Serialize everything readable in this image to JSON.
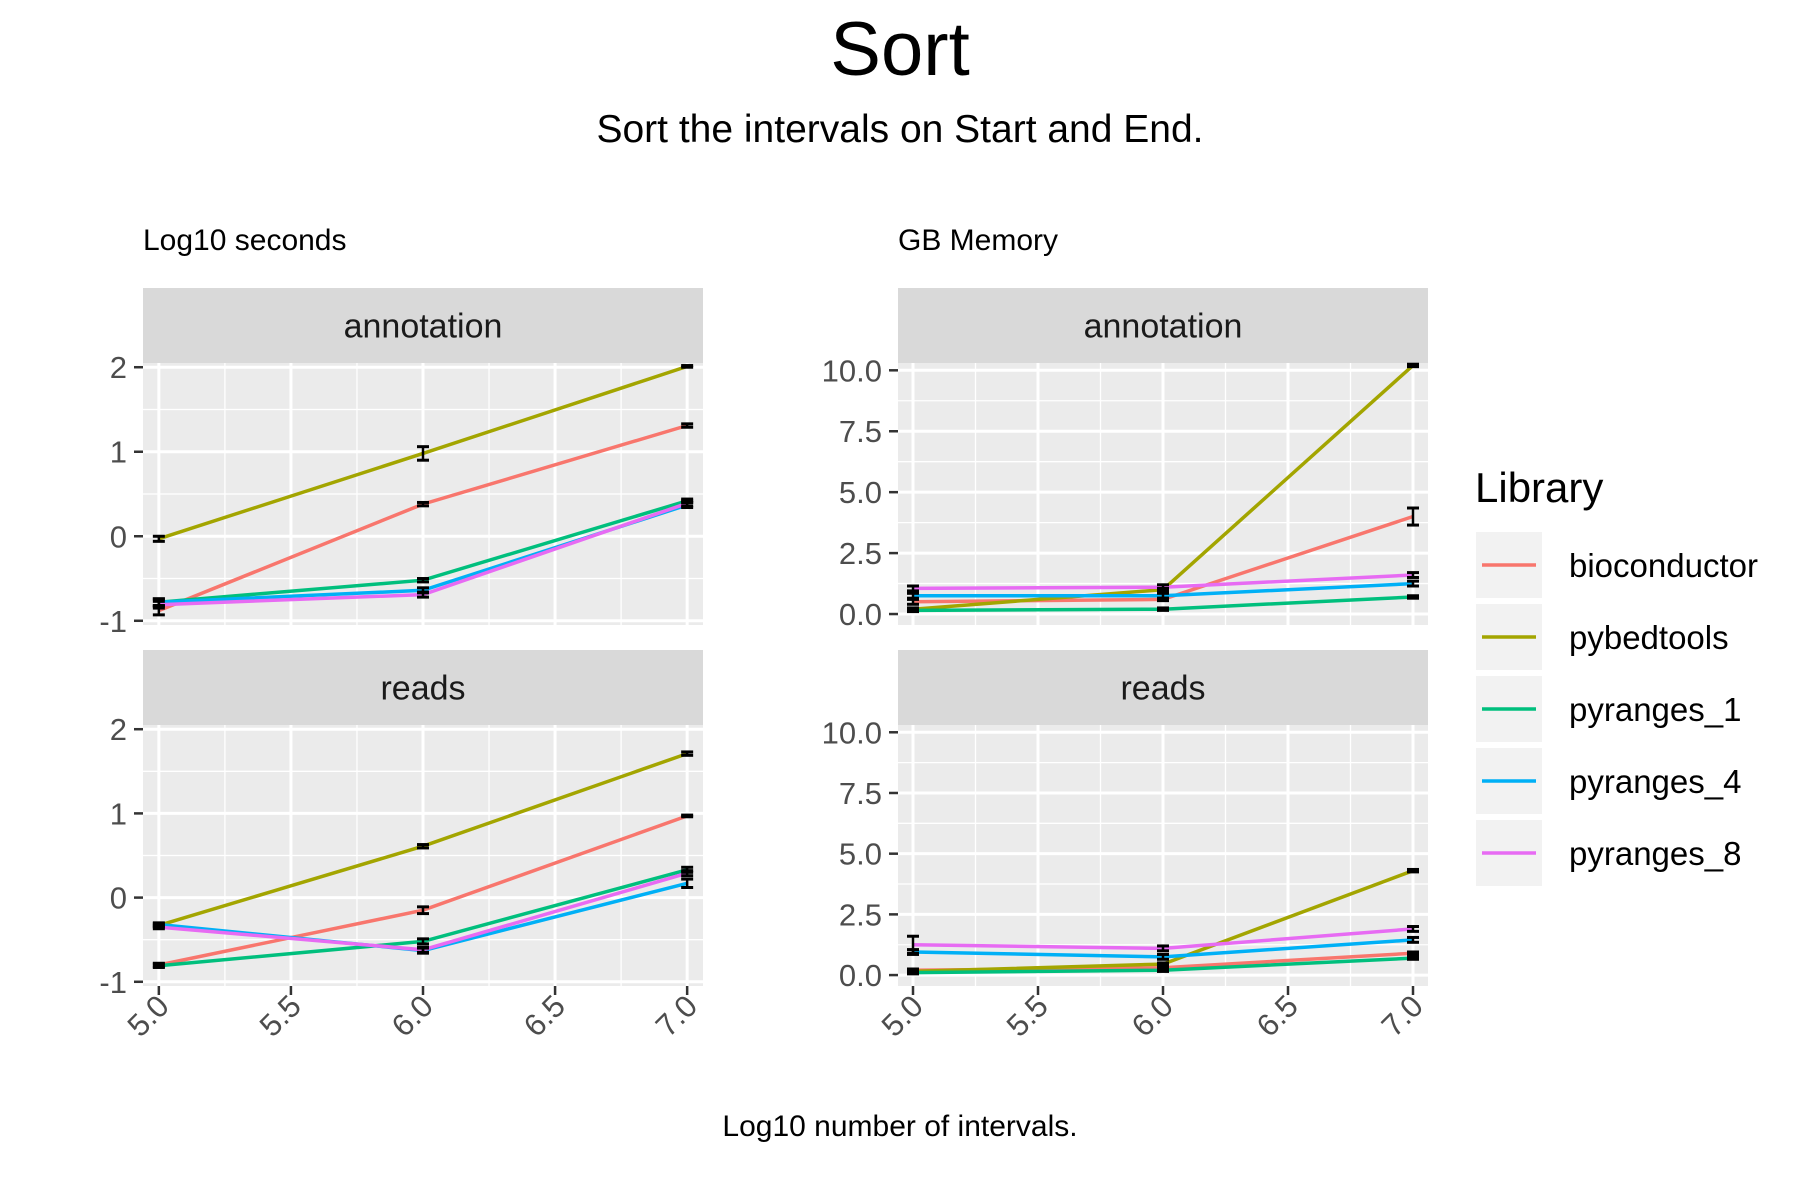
{
  "title": "Sort",
  "subtitle": "Sort the intervals on Start and End.",
  "x_axis_label": "Log10 number of intervals.",
  "legend": {
    "title": "Library",
    "items": [
      {
        "name": "bioconductor",
        "color": "#F8766D"
      },
      {
        "name": "pybedtools",
        "color": "#A3A500"
      },
      {
        "name": "pyranges_1",
        "color": "#00BF7D"
      },
      {
        "name": "pyranges_4",
        "color": "#00B0F6"
      },
      {
        "name": "pyranges_8",
        "color": "#E76BF3"
      }
    ]
  },
  "chart_data": [
    {
      "type": "line",
      "title": "Log10 seconds",
      "xlabel": "Log10 number of intervals.",
      "x_ticks": [
        "5.0",
        "5.5",
        "6.0",
        "6.5",
        "7.0"
      ],
      "xlim": [
        4.94,
        7.06
      ],
      "y_ticks": [
        "-1",
        "0",
        "1",
        "2"
      ],
      "ylim": [
        -1.05,
        2.05
      ],
      "grid": true,
      "legend_placement": "right",
      "facets": [
        {
          "label": "annotation",
          "series": [
            {
              "name": "bioconductor",
              "x": [
                5,
                6,
                7
              ],
              "y": [
                -0.88,
                0.38,
                1.31
              ],
              "err": [
                0.05,
                0.02,
                0.02
              ]
            },
            {
              "name": "pybedtools",
              "x": [
                5,
                6,
                7
              ],
              "y": [
                -0.03,
                0.98,
                2.01
              ],
              "err": [
                0.03,
                0.08,
                0.01
              ]
            },
            {
              "name": "pyranges_1",
              "x": [
                5,
                6,
                7
              ],
              "y": [
                -0.78,
                -0.52,
                0.42
              ],
              "err": [
                0.04,
                0.02,
                0.02
              ]
            },
            {
              "name": "pyranges_4",
              "x": [
                5,
                6,
                7
              ],
              "y": [
                -0.78,
                -0.64,
                0.37
              ],
              "err": [
                0.04,
                0.03,
                0.03
              ]
            },
            {
              "name": "pyranges_8",
              "x": [
                5,
                6,
                7
              ],
              "y": [
                -0.81,
                -0.69,
                0.39
              ],
              "err": [
                0.04,
                0.03,
                0.03
              ]
            }
          ]
        },
        {
          "label": "reads",
          "series": [
            {
              "name": "bioconductor",
              "x": [
                5,
                6,
                7
              ],
              "y": [
                -0.8,
                -0.15,
                0.97
              ],
              "err": [
                0.02,
                0.04,
                0.01
              ]
            },
            {
              "name": "pybedtools",
              "x": [
                5,
                6,
                7
              ],
              "y": [
                -0.33,
                0.61,
                1.71
              ],
              "err": [
                0.02,
                0.02,
                0.02
              ]
            },
            {
              "name": "pyranges_1",
              "x": [
                5,
                6,
                7
              ],
              "y": [
                -0.81,
                -0.52,
                0.33
              ],
              "err": [
                0.02,
                0.03,
                0.03
              ]
            },
            {
              "name": "pyranges_4",
              "x": [
                5,
                6,
                7
              ],
              "y": [
                -0.32,
                -0.63,
                0.17
              ],
              "err": [
                0.02,
                0.03,
                0.05
              ]
            },
            {
              "name": "pyranges_8",
              "x": [
                5,
                6,
                7
              ],
              "y": [
                -0.35,
                -0.62,
                0.29
              ],
              "err": [
                0.02,
                0.03,
                0.03
              ]
            }
          ]
        }
      ]
    },
    {
      "type": "line",
      "title": "GB Memory",
      "xlabel": "Log10 number of intervals.",
      "x_ticks": [
        "5.0",
        "5.5",
        "6.0",
        "6.5",
        "7.0"
      ],
      "xlim": [
        4.94,
        7.06
      ],
      "y_ticks": [
        "0.0",
        "2.5",
        "5.0",
        "7.5",
        "10.0"
      ],
      "ylim": [
        -0.45,
        10.3
      ],
      "grid": true,
      "legend_placement": "right",
      "facets": [
        {
          "label": "annotation",
          "series": [
            {
              "name": "bioconductor",
              "x": [
                5,
                6,
                7
              ],
              "y": [
                0.5,
                0.6,
                4.0
              ],
              "err": [
                0.1,
                0.05,
                0.35
              ]
            },
            {
              "name": "pybedtools",
              "x": [
                5,
                6,
                7
              ],
              "y": [
                0.2,
                1.0,
                10.2
              ],
              "err": [
                0.05,
                0.05,
                0.05
              ]
            },
            {
              "name": "pyranges_1",
              "x": [
                5,
                6,
                7
              ],
              "y": [
                0.15,
                0.2,
                0.7
              ],
              "err": [
                0.05,
                0.05,
                0.05
              ]
            },
            {
              "name": "pyranges_4",
              "x": [
                5,
                6,
                7
              ],
              "y": [
                0.75,
                0.75,
                1.25
              ],
              "err": [
                0.1,
                0.1,
                0.1
              ]
            },
            {
              "name": "pyranges_8",
              "x": [
                5,
                6,
                7
              ],
              "y": [
                1.05,
                1.1,
                1.6
              ],
              "err": [
                0.1,
                0.1,
                0.1
              ]
            }
          ]
        },
        {
          "label": "reads",
          "series": [
            {
              "name": "bioconductor",
              "x": [
                5,
                6,
                7
              ],
              "y": [
                0.2,
                0.3,
                0.9
              ],
              "err": [
                0.05,
                0.05,
                0.05
              ]
            },
            {
              "name": "pybedtools",
              "x": [
                5,
                6,
                7
              ],
              "y": [
                0.15,
                0.45,
                4.3
              ],
              "err": [
                0.05,
                0.05,
                0.05
              ]
            },
            {
              "name": "pyranges_1",
              "x": [
                5,
                6,
                7
              ],
              "y": [
                0.1,
                0.2,
                0.7
              ],
              "err": [
                0.05,
                0.05,
                0.05
              ]
            },
            {
              "name": "pyranges_4",
              "x": [
                5,
                6,
                7
              ],
              "y": [
                0.95,
                0.75,
                1.45
              ],
              "err": [
                0.1,
                0.1,
                0.1
              ]
            },
            {
              "name": "pyranges_8",
              "x": [
                5,
                6,
                7
              ],
              "y": [
                1.25,
                1.1,
                1.9
              ],
              "err": [
                0.35,
                0.1,
                0.1
              ]
            }
          ]
        }
      ]
    }
  ]
}
